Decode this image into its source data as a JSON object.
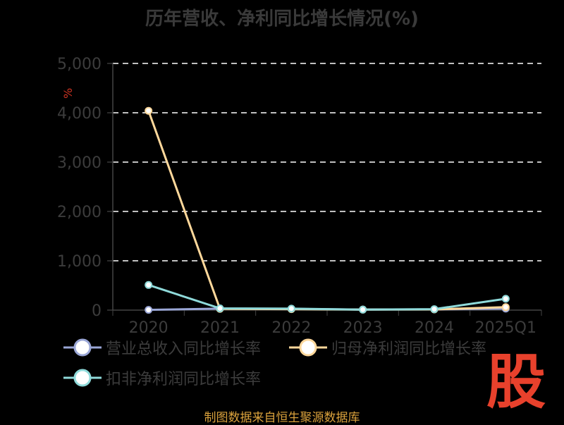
{
  "title": "历年营收、净利同比增长情况(%)",
  "footer": "制图数据来自恒生聚源数据库",
  "logo_text": "股",
  "chart_data": {
    "type": "line",
    "title": "历年营收、净利同比增长情况(%)",
    "unit_label": "%",
    "categories": [
      "2020",
      "2021",
      "2022",
      "2023",
      "2024",
      "2025Q1"
    ],
    "ylim": [
      0,
      5000
    ],
    "yticks": [
      0,
      1000,
      2000,
      3000,
      4000,
      5000
    ],
    "ytick_labels": [
      "0",
      "1,000",
      "2,000",
      "3,000",
      "4,000",
      "5,000"
    ],
    "grid": true,
    "legend_position": "bottom-left",
    "series": [
      {
        "name": "营业总收入同比增长率",
        "color": "#9aa6d6",
        "values": [
          5,
          30,
          25,
          12,
          15,
          30
        ]
      },
      {
        "name": "归母净利润同比增长率",
        "color": "#ffd89b",
        "values": [
          4040,
          25,
          20,
          10,
          15,
          60
        ]
      },
      {
        "name": "扣非净利润同比增长率",
        "color": "#8fdada",
        "values": [
          510,
          35,
          30,
          10,
          20,
          230
        ]
      }
    ]
  }
}
